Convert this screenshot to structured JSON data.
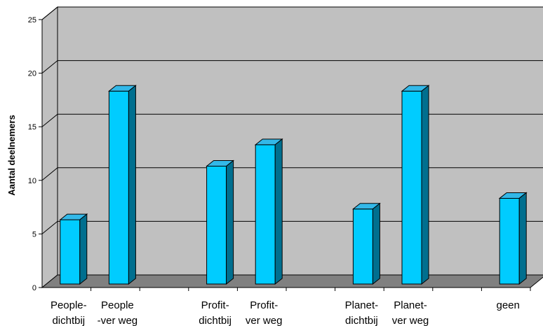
{
  "chart_data": {
    "type": "bar",
    "style": "3d-column",
    "ylabel": "Aantal deelnemers",
    "xlabel": "",
    "title": "",
    "ylim": [
      0,
      25
    ],
    "yticks": [
      0,
      5,
      10,
      15,
      20,
      25
    ],
    "grid": true,
    "categories": [
      {
        "line1": "People-",
        "line2": "dichtbij"
      },
      {
        "line1": "People",
        "line2": "-ver weg"
      },
      {
        "line1": "",
        "line2": ""
      },
      {
        "line1": "Profit-",
        "line2": "dichtbij"
      },
      {
        "line1": "Profit-",
        "line2": "ver weg"
      },
      {
        "line1": "",
        "line2": ""
      },
      {
        "line1": "Planet-",
        "line2": "dichtbij"
      },
      {
        "line1": "Planet-",
        "line2": "ver weg"
      },
      {
        "line1": "",
        "line2": ""
      },
      {
        "line1": "geen",
        "line2": ""
      }
    ],
    "values": [
      6,
      18,
      null,
      11,
      13,
      null,
      7,
      18,
      null,
      8
    ],
    "colors": {
      "bar_front": "#00ccff",
      "bar_top": "#33b8e8",
      "bar_side": "#006f8f",
      "wall": "#c0c0c0",
      "floor": "#808080",
      "gridline": "#000000"
    }
  }
}
